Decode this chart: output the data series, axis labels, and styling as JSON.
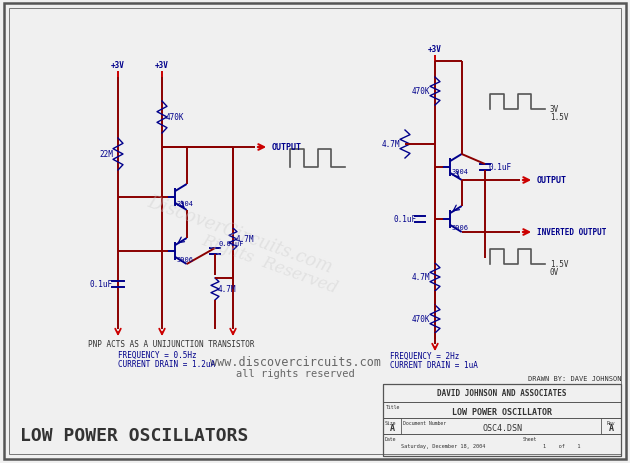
{
  "bg_color": "#f0f0f0",
  "border_color": "#555555",
  "title": "LOW POWER OSCILLATORS",
  "watermark_line1": "www.discovercircuits.com",
  "watermark_line2": "all rights reserved",
  "drawn_by": "DRAWN BY: DAVE JOHNSON",
  "company": "DAVID JOHNSON AND ASSOCIATES",
  "doc_title": "LOW POWER OSCILLATOR",
  "size_label": "A",
  "doc_number": "OSC4.DSN",
  "rev": "A",
  "date_label": "Saturday, December 18, 2004",
  "wire_color": "#8B0000",
  "label_color": "#00008B",
  "arrow_color": "#cc0000",
  "gnd_color": "#cc0000",
  "resistor_color": "#00008B",
  "transistor_color": "#00008B",
  "text_color": "#333333",
  "wm_color": "#bbbbbb",
  "wm_diag_color": "#cccccc"
}
